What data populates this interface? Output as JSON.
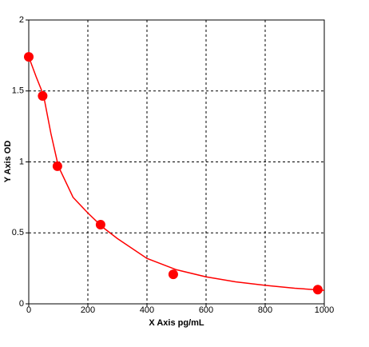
{
  "chart_data": {
    "type": "scatter",
    "x_label": "X Axis pg/mL",
    "y_label": "Y Axis OD",
    "xlim": [
      0,
      1000
    ],
    "ylim": [
      0,
      2
    ],
    "xticks": [
      0,
      200,
      400,
      600,
      800,
      1000
    ],
    "yticks": [
      0,
      0.5,
      1,
      1.5,
      2
    ],
    "grid": true,
    "series": [
      {
        "color": "#ff0000",
        "x": [
          0,
          47,
          97,
          243,
          489,
          978
        ],
        "values": [
          1.74,
          1.465,
          0.97,
          0.558,
          0.208,
          0.1
        ]
      }
    ],
    "fit": {
      "color": "#ff0000",
      "x": [
        0,
        25,
        50,
        75,
        100,
        150,
        200,
        250,
        300,
        400,
        500,
        600,
        700,
        800,
        900,
        1000
      ],
      "values": [
        1.74,
        1.6,
        1.47,
        1.2,
        0.97,
        0.75,
        0.64,
        0.54,
        0.46,
        0.32,
        0.24,
        0.19,
        0.155,
        0.13,
        0.11,
        0.095
      ]
    }
  }
}
